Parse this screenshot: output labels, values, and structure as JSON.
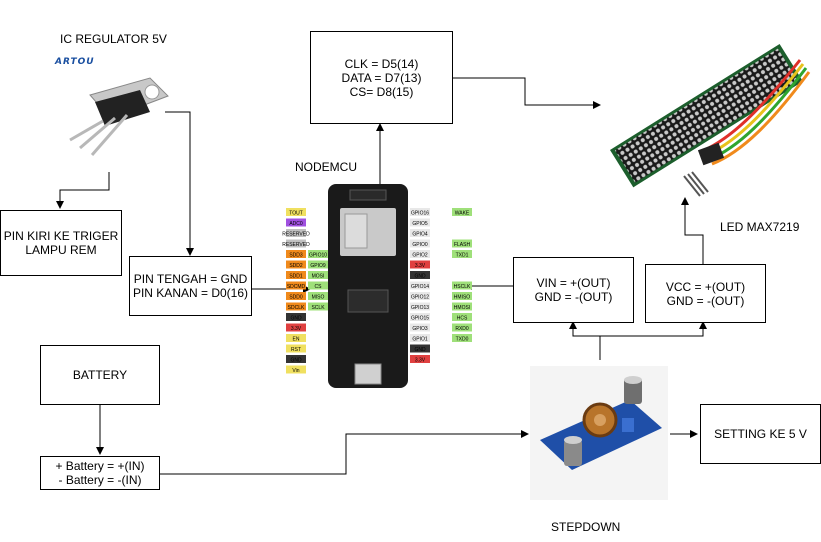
{
  "ic_regulator": {
    "title": "IC REGULATOR 5V",
    "logo": "ARTOU"
  },
  "trigger_box": {
    "line1": "PIN KIRI KE TRIGER",
    "line2": "LAMPU REM"
  },
  "regulator_pins_box": {
    "line1": "PIN TENGAH = GND",
    "line2": "PIN KANAN = D0(16)"
  },
  "pins_box": {
    "line1": "CLK = D5(14)",
    "line2": "DATA = D7(13)",
    "line3": "CS= D8(15)"
  },
  "nodemcu": {
    "title": "NODEMCU",
    "left_pins": [
      "TOUT",
      "ADC0",
      "RESERVED",
      "RESERVED",
      "SDD3",
      "SDD2",
      "SDD1",
      "SDCMD",
      "SDD0",
      "SDCLK",
      "GND",
      "3.3V",
      "EN",
      "RST",
      "GND",
      "Vin"
    ],
    "left_gpio": [
      "",
      "",
      "",
      "",
      "GPIO10",
      "GPIO9",
      "MOSI",
      "CS",
      "MISO",
      "SCLK",
      "",
      "",
      "",
      "",
      "",
      ""
    ],
    "right_pins": [
      "GPIO16",
      "GPIO5",
      "GPIO4",
      "GPIO0",
      "GPIO2",
      "3.3V",
      "GND",
      "GPIO14",
      "GPIO12",
      "GPIO13",
      "GPIO15",
      "GPIO3",
      "GPIO1",
      "GND",
      "3.3V"
    ],
    "right_tags": [
      "WAKE",
      "",
      "",
      "FLASH",
      "TXD1",
      "",
      "",
      "HSCLK",
      "HMISO",
      "HMOSI",
      "HCS",
      "RXD0",
      "TXD0",
      "",
      ""
    ]
  },
  "led": {
    "title": "LED MAX7219"
  },
  "vin_box": {
    "line1": "VIN = +(OUT)",
    "line2": "GND = -(OUT)"
  },
  "vcc_box": {
    "line1": "VCC = +(OUT)",
    "line2": "GND = -(OUT)"
  },
  "battery_box": {
    "label": "BATTERY"
  },
  "battery_pins_box": {
    "line1": "+ Battery =  +(IN)",
    "line2": "- Battery =  -(IN)"
  },
  "stepdown": {
    "title": "STEPDOWN"
  },
  "setting_box": {
    "label": "SETTING KE 5 V"
  },
  "colors": {
    "board": "#1a1a1a",
    "module_pcb": "#1f4fa8",
    "led_pcb": "#1c5e2c",
    "wire_red": "#e0302a",
    "wire_green": "#2fa52f",
    "wire_yellow": "#e8c21c",
    "wire_orange": "#f08a1c"
  }
}
